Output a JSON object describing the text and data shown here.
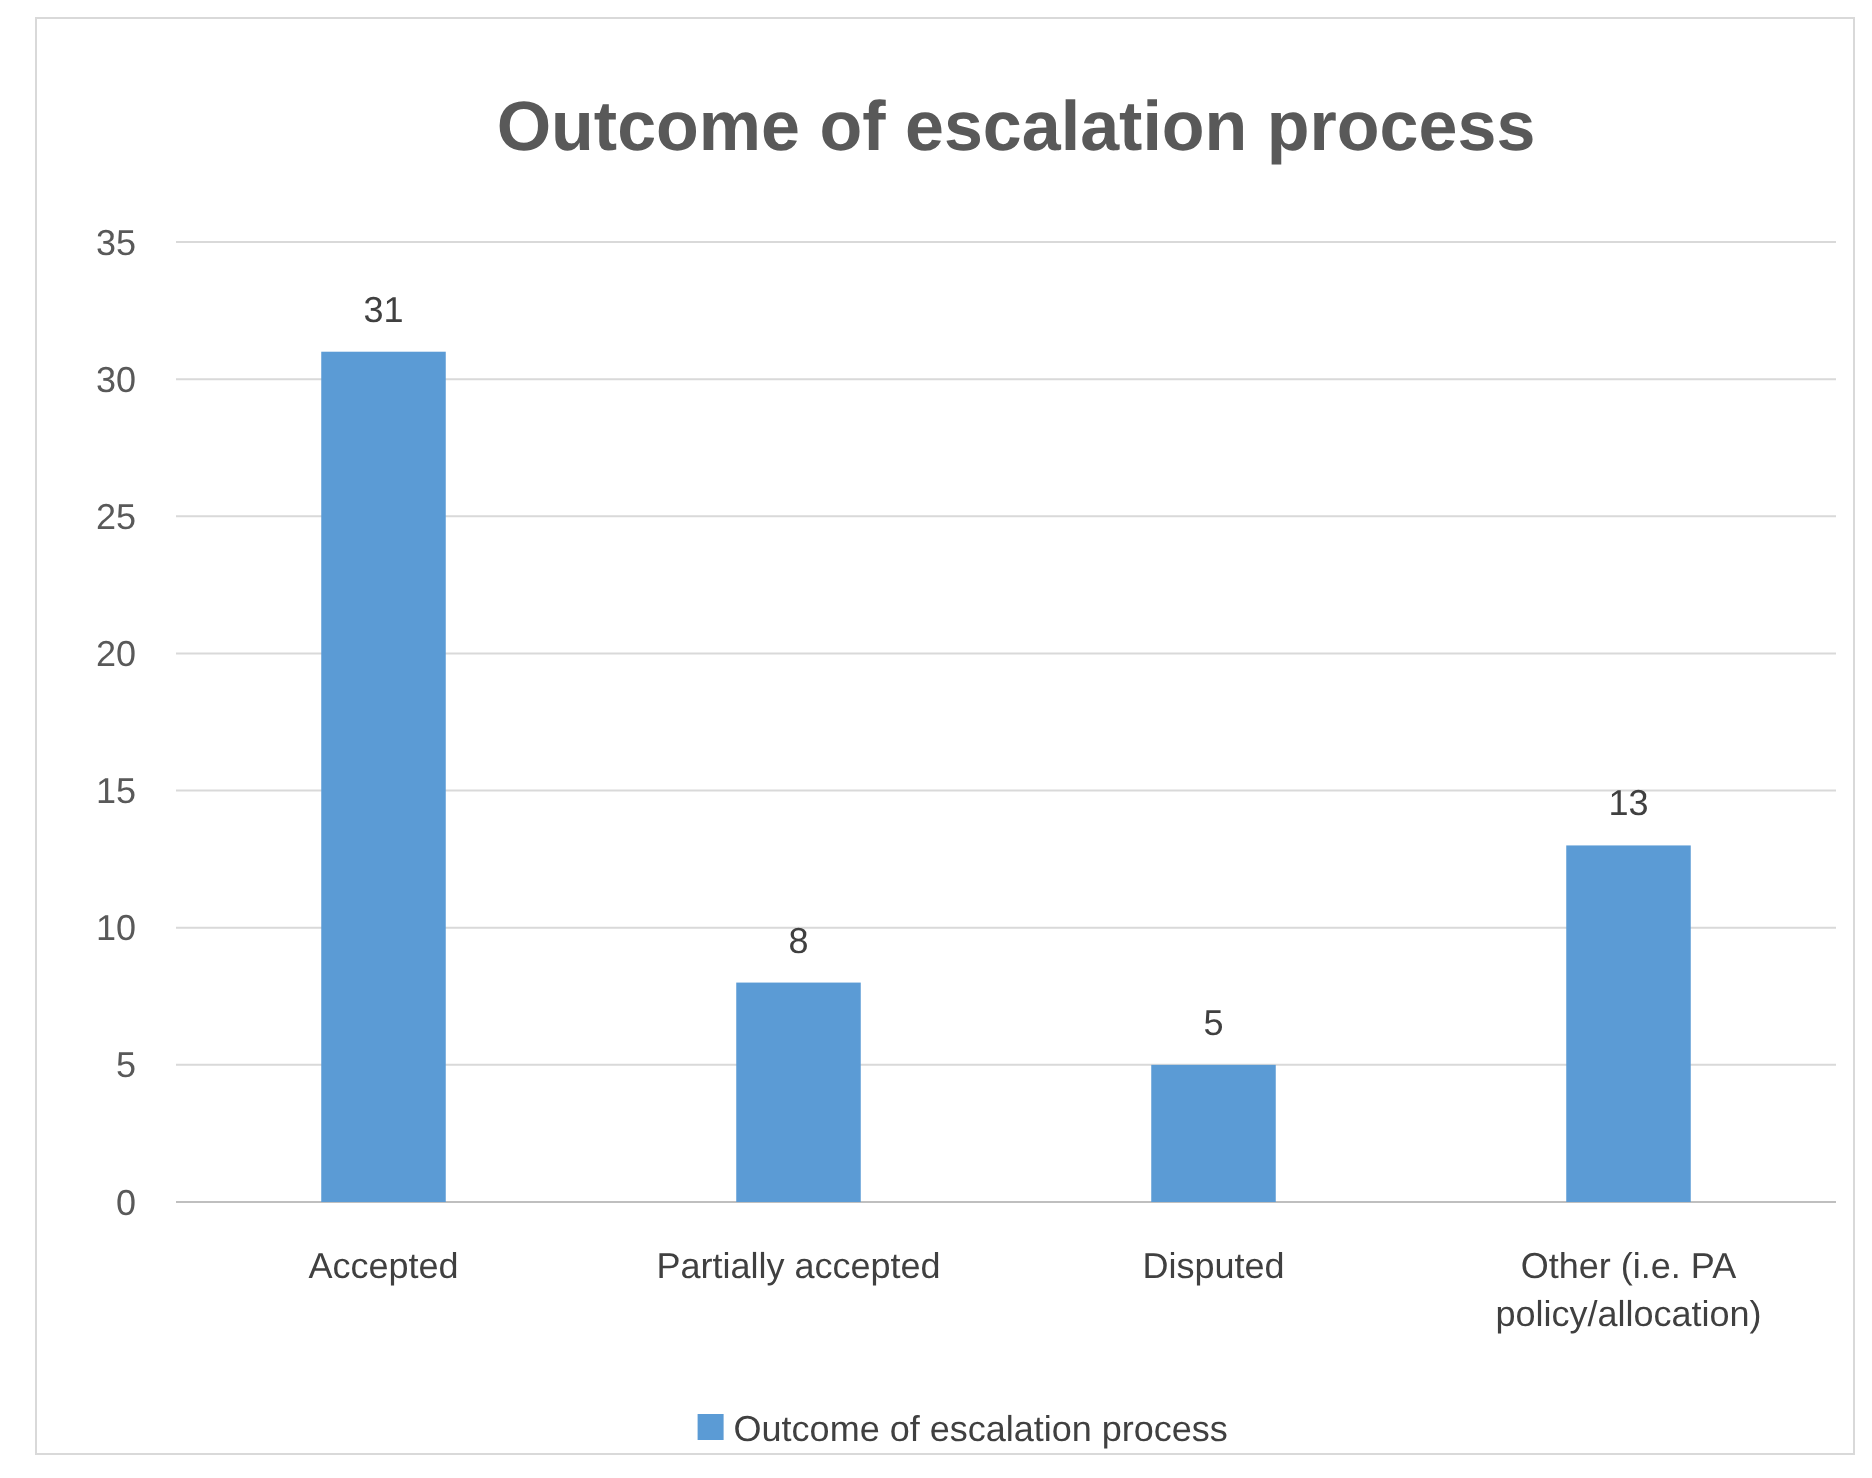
{
  "chart_data": {
    "type": "bar",
    "title": "Outcome of escalation process",
    "categories": [
      "Accepted",
      "Partially accepted",
      "Disputed",
      "Other (i.e. PA policy/allocation)"
    ],
    "series": [
      {
        "name": "Outcome of escalation process",
        "color": "#5b9bd5",
        "values": [
          31,
          8,
          5,
          13
        ]
      }
    ],
    "ylim": [
      0,
      35
    ],
    "yticks": [
      0,
      5,
      10,
      15,
      20,
      25,
      30,
      35
    ],
    "grid": "y",
    "legend": "bottom",
    "data_labels": true
  }
}
